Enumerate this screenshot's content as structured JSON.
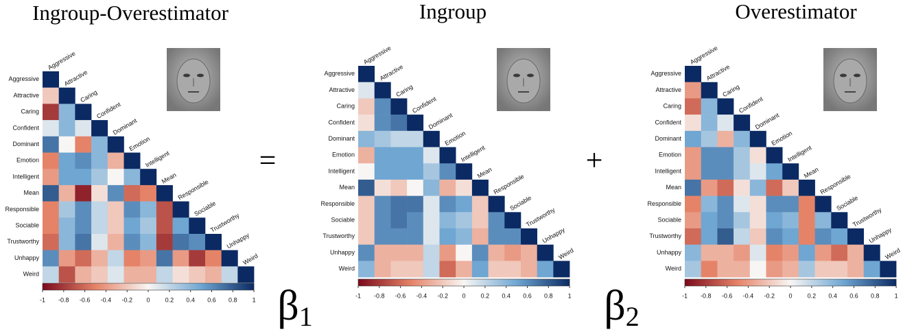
{
  "operators": [
    "=",
    "+"
  ],
  "chart_data": [
    {
      "type": "heatmap",
      "title": "Ingroup-Overestimator",
      "categories": [
        "Aggressive",
        "Attractive",
        "Caring",
        "Confident",
        "Dominant",
        "Emotion",
        "Intelligent",
        "Mean",
        "Responsible",
        "Sociable",
        "Trustworthy",
        "Unhappy",
        "Weird"
      ],
      "values": [
        [
          1
        ],
        [
          -0.2,
          1
        ],
        [
          -0.8,
          0.4,
          1
        ],
        [
          0.1,
          0.4,
          0.1,
          1
        ],
        [
          0.7,
          0.0,
          -0.5,
          0.4,
          1
        ],
        [
          -0.5,
          0.5,
          0.6,
          0.4,
          -0.3,
          1
        ],
        [
          -0.4,
          0.5,
          0.5,
          0.3,
          0.0,
          0.4,
          1
        ],
        [
          0.8,
          -0.3,
          -0.9,
          -0.1,
          0.6,
          -0.6,
          -0.5,
          1
        ],
        [
          -0.5,
          0.3,
          0.6,
          0.2,
          -0.2,
          0.6,
          0.4,
          -0.7,
          1
        ],
        [
          -0.5,
          0.4,
          0.6,
          0.2,
          -0.2,
          0.5,
          0.3,
          -0.7,
          0.5,
          1
        ],
        [
          -0.6,
          0.4,
          0.7,
          0.1,
          -0.3,
          0.6,
          0.4,
          -0.8,
          0.7,
          0.6,
          1
        ],
        [
          0.6,
          -0.4,
          -0.6,
          -0.3,
          0.2,
          -0.5,
          -0.4,
          0.7,
          -0.4,
          -0.8,
          -0.5,
          1
        ],
        [
          0.2,
          -0.7,
          -0.3,
          -0.2,
          0.1,
          -0.3,
          -0.3,
          0.2,
          -0.1,
          -0.2,
          -0.3,
          0.2,
          1
        ]
      ],
      "zlim": [
        -1,
        1
      ],
      "zticks": [
        -1,
        -0.8,
        -0.6,
        -0.4,
        -0.2,
        0,
        0.2,
        0.4,
        0.6,
        0.8,
        1
      ],
      "colorscale": [
        "#7b0a1c",
        "#e58368",
        "#f8f6f4",
        "#6fa6d2",
        "#0b2a63"
      ]
    },
    {
      "type": "heatmap",
      "title": "Ingroup",
      "coefficient": "β",
      "coefficient_index": "1",
      "categories": [
        "Aggressive",
        "Attractive",
        "Caring",
        "Confident",
        "Dominant",
        "Emotion",
        "Intelligent",
        "Mean",
        "Responsible",
        "Sociable",
        "Trustworthy",
        "Unhappy",
        "Weird"
      ],
      "values": [
        [
          1
        ],
        [
          0.1,
          1
        ],
        [
          -0.2,
          0.6,
          1
        ],
        [
          -0.1,
          0.6,
          0.7,
          1
        ],
        [
          0.4,
          0.3,
          0.2,
          0.2,
          1
        ],
        [
          -0.3,
          0.5,
          0.5,
          0.5,
          0.1,
          1
        ],
        [
          0.0,
          0.5,
          0.5,
          0.5,
          0.3,
          0.6,
          1
        ],
        [
          0.8,
          -0.1,
          -0.2,
          0.0,
          0.4,
          -0.3,
          -0.1,
          1
        ],
        [
          -0.2,
          0.6,
          0.7,
          0.7,
          0.1,
          0.6,
          0.5,
          -0.2,
          1
        ],
        [
          -0.2,
          0.6,
          0.7,
          0.6,
          0.1,
          0.4,
          0.3,
          -0.2,
          0.6,
          1
        ],
        [
          -0.2,
          0.6,
          0.6,
          0.6,
          0.1,
          0.5,
          0.4,
          -0.3,
          0.6,
          0.6,
          1
        ],
        [
          0.6,
          -0.3,
          -0.3,
          -0.3,
          0.2,
          -0.4,
          0.0,
          0.6,
          -0.3,
          -0.4,
          -0.3,
          1
        ],
        [
          0.4,
          -0.3,
          -0.2,
          -0.2,
          0.2,
          -0.6,
          -0.3,
          0.5,
          -0.2,
          -0.2,
          -0.3,
          0.5,
          1
        ]
      ],
      "zlim": [
        -1,
        1
      ],
      "zticks": [
        -1,
        -0.8,
        -0.6,
        -0.4,
        -0.2,
        0,
        0.2,
        0.4,
        0.6,
        0.8,
        1
      ],
      "colorscale": [
        "#7b0a1c",
        "#e58368",
        "#f8f6f4",
        "#6fa6d2",
        "#0b2a63"
      ]
    },
    {
      "type": "heatmap",
      "title": "Overestimator",
      "coefficient": "β",
      "coefficient_index": "2",
      "categories": [
        "Aggressive",
        "Attractive",
        "Caring",
        "Confident",
        "Dominant",
        "Emotion",
        "Intelligent",
        "Mean",
        "Responsible",
        "Sociable",
        "Trustworthy",
        "Unhappy",
        "Weird"
      ],
      "values": [
        [
          1
        ],
        [
          -0.4,
          1
        ],
        [
          -0.6,
          0.4,
          1
        ],
        [
          -0.1,
          0.4,
          0.1,
          1
        ],
        [
          0.5,
          0.3,
          -0.3,
          0.4,
          1
        ],
        [
          -0.4,
          0.6,
          0.6,
          0.3,
          -0.1,
          1
        ],
        [
          -0.4,
          0.6,
          0.6,
          0.3,
          0.1,
          0.5,
          1
        ],
        [
          0.7,
          -0.4,
          -0.6,
          -0.1,
          0.4,
          -0.6,
          -0.2,
          1
        ],
        [
          -0.5,
          0.4,
          0.6,
          0.1,
          -0.1,
          0.6,
          0.6,
          -0.5,
          1
        ],
        [
          -0.4,
          0.5,
          0.6,
          0.3,
          -0.1,
          0.5,
          0.4,
          -0.5,
          0.4,
          1
        ],
        [
          -0.6,
          0.5,
          0.8,
          0.2,
          -0.2,
          0.6,
          0.5,
          -0.5,
          0.6,
          0.5,
          1
        ],
        [
          0.4,
          -0.3,
          -0.3,
          -0.4,
          0.1,
          -0.5,
          -0.4,
          0.5,
          -0.4,
          -0.6,
          -0.3,
          1
        ],
        [
          0.3,
          -0.5,
          -0.3,
          -0.3,
          0.0,
          -0.4,
          -0.3,
          0.3,
          -0.2,
          -0.2,
          -0.3,
          0.5,
          1
        ]
      ],
      "zlim": [
        -1,
        1
      ],
      "zticks": [
        -1,
        -0.8,
        -0.6,
        -0.4,
        -0.2,
        0,
        0.2,
        0.4,
        0.6,
        0.8,
        1
      ],
      "colorscale": [
        "#7b0a1c",
        "#e58368",
        "#f8f6f4",
        "#6fa6d2",
        "#0b2a63"
      ]
    }
  ]
}
